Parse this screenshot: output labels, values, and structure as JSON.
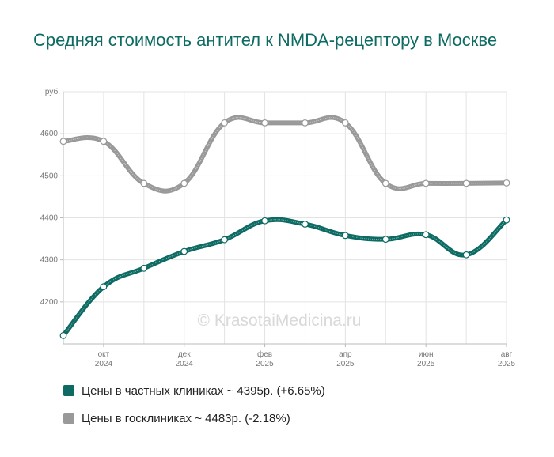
{
  "title": "Средняя стоимость антител к NMDA-рецептору в Москве",
  "watermark": "© KrasotaiMedicina.ru",
  "legend": [
    {
      "label": "Цены в частных клиниках ~ 4395р. (+6.65%)",
      "color": "#0d6b63"
    },
    {
      "label": "Цены в госклиниках ~ 4483р. (-2.18%)",
      "color": "#999999"
    }
  ],
  "chart_data": {
    "type": "line",
    "title": "Средняя стоимость антител к NMDA-рецептору в Москве",
    "ylabel": "руб.",
    "ylim": [
      4100,
      4700
    ],
    "yticks": [
      4200,
      4300,
      4400,
      4500,
      4600
    ],
    "x": [
      "2024-09",
      "2024-10",
      "2024-11",
      "2024-12",
      "2025-01",
      "2025-02",
      "2025-03",
      "2025-04",
      "2025-05",
      "2025-06",
      "2025-07",
      "2025-08"
    ],
    "xtick_labels": [
      {
        "month": "окт",
        "year": "2024",
        "index": 1
      },
      {
        "month": "дек",
        "year": "2024",
        "index": 3
      },
      {
        "month": "фев",
        "year": "2025",
        "index": 5
      },
      {
        "month": "апр",
        "year": "2025",
        "index": 7
      },
      {
        "month": "июн",
        "year": "2025",
        "index": 9
      },
      {
        "month": "авг",
        "year": "2025",
        "index": 11
      }
    ],
    "grid": true,
    "legend_position": "bottom",
    "series": [
      {
        "name": "Цены в частных клиниках ~ 4395р. (+6.65%)",
        "color": "#0d6b63",
        "values": [
          4120,
          4236,
          4280,
          4320,
          4348,
          4393,
          4385,
          4358,
          4349,
          4360,
          4312,
          4395
        ]
      },
      {
        "name": "Цены в госклиниках ~ 4483р. (-2.18%)",
        "color": "#999999",
        "values": [
          4582,
          4582,
          4482,
          4482,
          4626,
          4626,
          4626,
          4626,
          4482,
          4482,
          4482,
          4483
        ]
      }
    ]
  }
}
